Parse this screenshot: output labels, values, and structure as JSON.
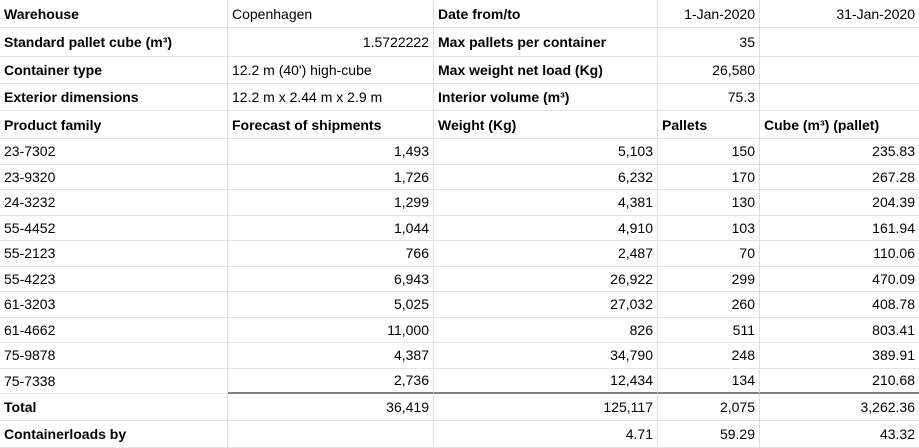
{
  "colors": {
    "background": "#ffffff",
    "text": "#000000",
    "gridline": "#dedede",
    "total_border": "#808080"
  },
  "info": {
    "warehouse_label": "Warehouse",
    "warehouse_value": "Copenhagen",
    "date_range_label": "Date from/to",
    "date_from": "1-Jan-2020",
    "date_to": "31-Jan-2020",
    "pallet_cube_label": "Standard pallet cube (m³)",
    "pallet_cube_value": "1.5722222",
    "max_pallets_label": "Max pallets per container",
    "max_pallets_value": "35",
    "container_type_label": "Container type",
    "container_type_value": "12.2 m (40') high-cube",
    "max_weight_label": "Max weight net load (Kg)",
    "max_weight_value": "26,580",
    "exterior_dimensions_label": "Exterior dimensions",
    "exterior_dimensions_value": "12.2 m x 2.44 m x 2.9 m",
    "interior_volume_label": "Interior volume (m³)",
    "interior_volume_value": "75.3"
  },
  "table": {
    "headers": [
      "Product family",
      "Forecast of shipments",
      "Weight (Kg)",
      "Pallets",
      "Cube (m³) (pallet)"
    ],
    "rows": [
      [
        "23-7302",
        "1,493",
        "5,103",
        "150",
        "235.83"
      ],
      [
        "23-9320",
        "1,726",
        "6,232",
        "170",
        "267.28"
      ],
      [
        "24-3232",
        "1,299",
        "4,381",
        "130",
        "204.39"
      ],
      [
        "55-4452",
        "1,044",
        "4,910",
        "103",
        "161.94"
      ],
      [
        "55-2123",
        "766",
        "2,487",
        "70",
        "110.06"
      ],
      [
        "55-4223",
        "6,943",
        "26,922",
        "299",
        "470.09"
      ],
      [
        "61-3203",
        "5,025",
        "27,032",
        "260",
        "408.78"
      ],
      [
        "61-4662",
        "11,000",
        "826",
        "511",
        "803.41"
      ],
      [
        "75-9878",
        "4,387",
        "34,790",
        "248",
        "389.91"
      ],
      [
        "75-7338",
        "2,736",
        "12,434",
        "134",
        "210.68"
      ]
    ],
    "total_row": [
      "Total",
      "36,419",
      "125,117",
      "2,075",
      "3,262.36"
    ],
    "containerloads_row": [
      "Containerloads by",
      "",
      "4.71",
      "59.29",
      "43.32"
    ]
  }
}
